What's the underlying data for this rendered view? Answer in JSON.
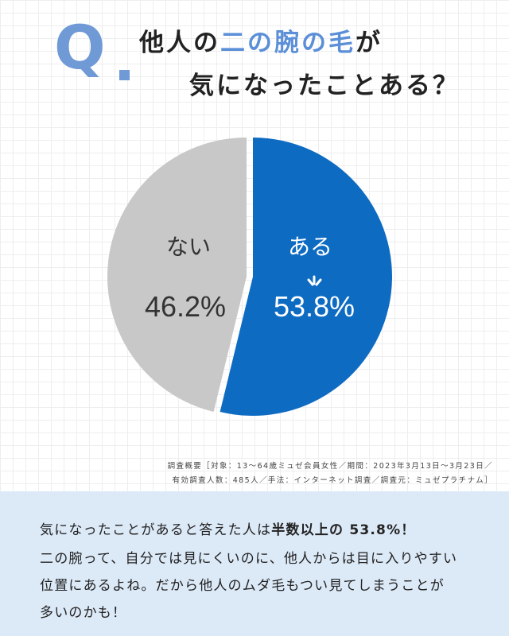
{
  "header": {
    "q_letter": "Q",
    "title_line1_pre": "他人の",
    "title_line1_highlight": "二の腕の毛",
    "title_line1_post": "が",
    "title_line2": "気になったことある？",
    "highlight_color": "#5b8fd8",
    "q_color": "#6f9ad6"
  },
  "chart_data": {
    "type": "pie",
    "slices": [
      {
        "label": "ある",
        "value": 53.8,
        "display": "53.8%",
        "color": "#0e6bc2"
      },
      {
        "label": "ない",
        "value": 46.2,
        "display": "46.2%",
        "color": "#c8c8c8"
      }
    ]
  },
  "survey_note": {
    "line1": "調査概要［対象：13～64歳ミュゼ会員女性／期間：2023年3月13日～3月23日／",
    "line2": "有効調査人数：485人／手法：インターネット調査／調査元：ミュゼプラチナム］"
  },
  "comment": {
    "line1_pre": "気になったことがあると答えた人は",
    "line1_bold": "半数以上の 53.8%！",
    "line2": "二の腕って、自分では見にくいのに、他人からは目に入りやすい",
    "line3": "位置にあるよね。だから他人のムダ毛もつい見てしまうことが",
    "line4": "多いのかも！",
    "background": "#dce9f7"
  }
}
